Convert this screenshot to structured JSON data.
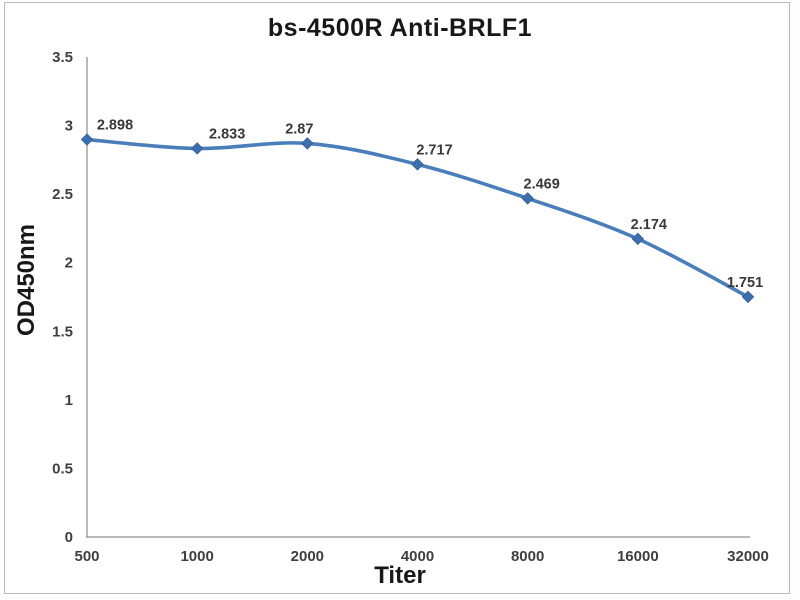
{
  "chart_data": {
    "type": "line",
    "title": "bs-4500R Anti-BRLF1",
    "xlabel": "Titer",
    "ylabel": "OD450nm",
    "categories": [
      "500",
      "1000",
      "2000",
      "4000",
      "8000",
      "16000",
      "32000"
    ],
    "series": [
      {
        "name": "OD450nm",
        "values": [
          2.898,
          2.833,
          2.87,
          2.717,
          2.469,
          2.174,
          1.751
        ],
        "data_labels": [
          "2.898",
          "2.833",
          "2.87",
          "2.717",
          "2.469",
          "2.174",
          "1.751"
        ]
      }
    ],
    "ylim": [
      0,
      3.5
    ],
    "ytick_step": 0.5,
    "ytick_labels": [
      "0",
      "0.5",
      "1",
      "1.5",
      "2",
      "2.5",
      "3",
      "3.5"
    ],
    "grid": false,
    "legend": "none",
    "smooth_line": true,
    "marker": "diamond",
    "colors": {
      "line": "#4a7ebb",
      "marker_fill": "#3e6fad",
      "marker_stroke": "#35619b",
      "axis": "#a3a3a3",
      "tick_text": "#3f3f3f",
      "title_text": "#171717"
    }
  }
}
